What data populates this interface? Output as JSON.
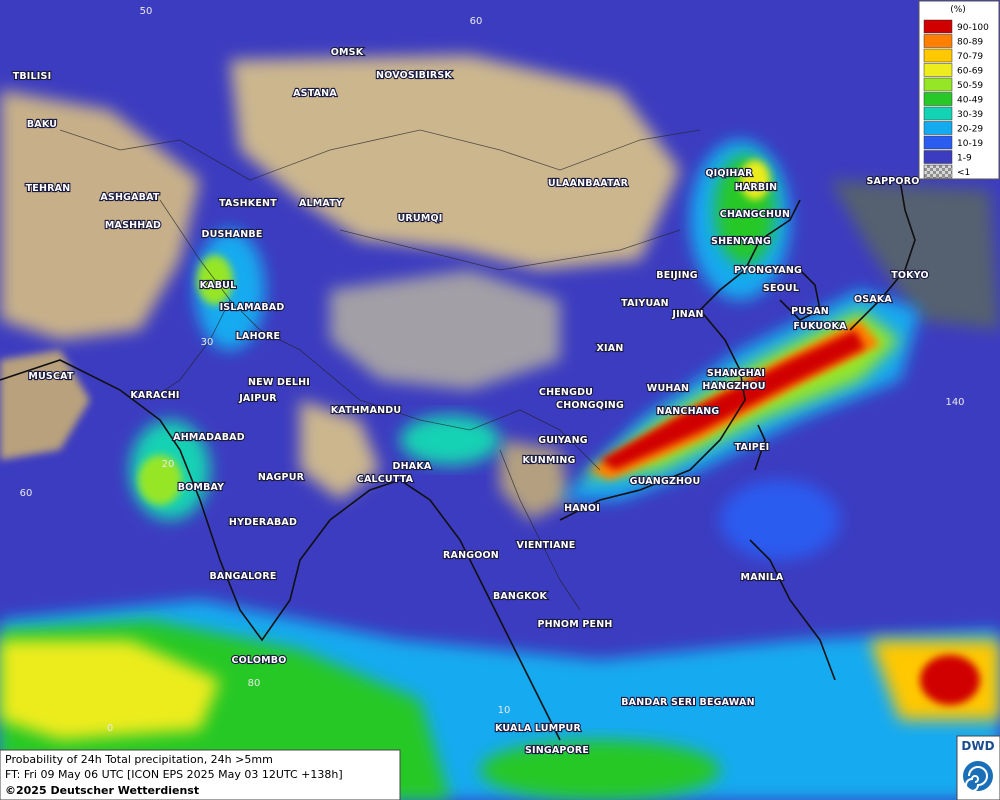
{
  "legend": {
    "title": "(%)",
    "items": [
      {
        "label": "90-100",
        "color": "#d00000"
      },
      {
        "label": "80-89",
        "color": "#ff8000"
      },
      {
        "label": "70-79",
        "color": "#ffc800"
      },
      {
        "label": "60-69",
        "color": "#ecec1e"
      },
      {
        "label": "50-59",
        "color": "#96e628"
      },
      {
        "label": "40-49",
        "color": "#28c828"
      },
      {
        "label": "30-39",
        "color": "#14d2b4"
      },
      {
        "label": "20-29",
        "color": "#14aaf0"
      },
      {
        "label": "10-19",
        "color": "#2a5cf0"
      },
      {
        "label": "1-9",
        "color": "#3c3cc0"
      },
      {
        "label": "<1",
        "color": "#a0a0a0"
      }
    ]
  },
  "cities": [
    "OMSK",
    "NOVOSIBIRSK",
    "TBILISI",
    "ASTANA",
    "BAKU",
    "TEHRAN",
    "ASHGABAT",
    "MASHHAD",
    "TASHKENT",
    "ALMATY",
    "DUSHANBE",
    "URUMQI",
    "ULAANBAATAR",
    "QIQIHAR",
    "HARBIN",
    "CHANGCHUN",
    "SHENYANG",
    "SAPPORO",
    "KABUL",
    "ISLAMABAD",
    "BEIJING",
    "PYONGYANG",
    "SEOUL",
    "TOKYO",
    "OSAKA",
    "PUSAN",
    "FUKUOKA",
    "TAIYUAN",
    "JINAN",
    "LAHORE",
    "XIAN",
    "MUSCAT",
    "NEW DELHI",
    "SHANGHAI",
    "HANGZHOU",
    "WUHAN",
    "CHENGDU",
    "CHONGQING",
    "KARACHI",
    "JAIPUR",
    "KATHMANDU",
    "NANCHANG",
    "AHMADABAD",
    "GUIYANG",
    "TAIPEI",
    "DHAKA",
    "KUNMING",
    "NAGPUR",
    "CALCUTTA",
    "BOMBAY",
    "GUANGZHOU",
    "HANOI",
    "HYDERABAD",
    "VIENTIANE",
    "RANGOON",
    "MANILA",
    "BANGALORE",
    "BANGKOK",
    "PHNOM PENH",
    "COLOMBO",
    "BANDAR SERI BEGAWAN",
    "KUALA LUMPUR",
    "SINGAPORE"
  ],
  "grid_labels": [
    "50",
    "60",
    "30",
    "20",
    "60",
    "80",
    "0",
    "140",
    "10"
  ],
  "caption": {
    "line1": "Probability of 24h Total precipitation, 24h >5mm",
    "line2": "FT: Fri 09 May 06 UTC [ICON EPS 2025 May 03 12UTC +138h]",
    "line3": "©2025 Deutscher Wetterdienst"
  },
  "logo": "DWD"
}
